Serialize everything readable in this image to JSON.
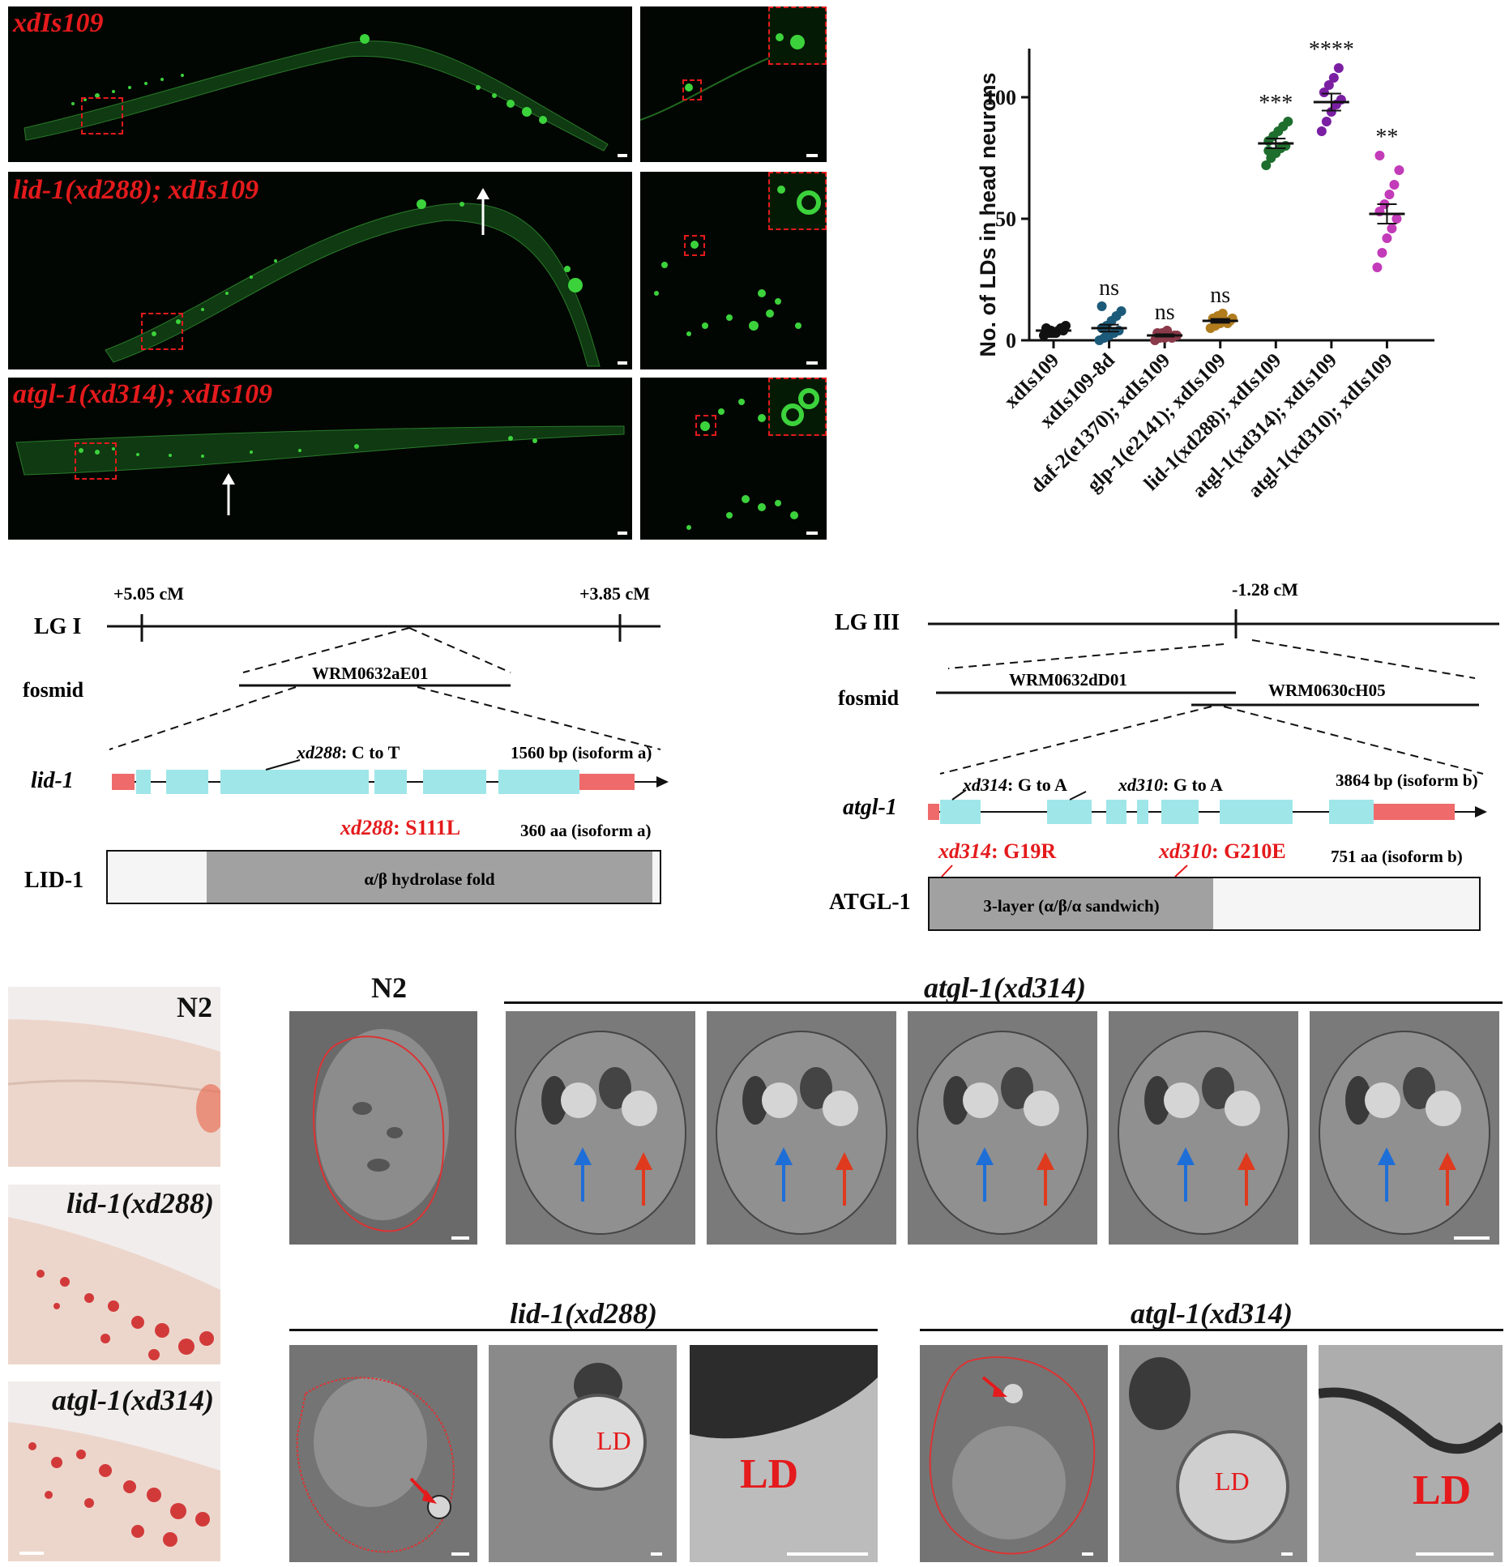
{
  "panelA": {
    "rows": [
      {
        "label": "xdIs109"
      },
      {
        "label": "lid-1(xd288); xdIs109"
      },
      {
        "label": "atgl-1(xd314); xdIs109"
      }
    ],
    "colors": {
      "gfp": "#3cd23c",
      "label_red": "#e41a1c",
      "background": "#020602"
    }
  },
  "chart_data": {
    "type": "scatter",
    "ylabel": "No. of LDs in head neurons",
    "ylim": [
      0,
      120
    ],
    "yticks": [
      0,
      50,
      100
    ],
    "categories": [
      "xdIs109",
      "xdIs109-8d",
      "daf-2(e1370); xdIs109",
      "glp-1(e2141); xdIs109",
      "lid-1(xd288); xdIs109",
      "atgl-1(xd314); xdIs109",
      "atgl-1(xd310); xdIs109"
    ],
    "significance": [
      "",
      "ns",
      "ns",
      "ns",
      "***",
      "****",
      "**"
    ],
    "series": [
      {
        "color": "#111111",
        "mean": 4,
        "sem": 0.6,
        "points": [
          2,
          3,
          3,
          4,
          4,
          5,
          4,
          3,
          5,
          6,
          4,
          3
        ]
      },
      {
        "color": "#1c5a7a",
        "mean": 5,
        "sem": 1.4,
        "points": [
          0,
          1,
          2,
          3,
          4,
          5,
          6,
          8,
          10,
          12,
          14,
          2
        ]
      },
      {
        "color": "#8a3a4a",
        "mean": 2,
        "sem": 0.5,
        "points": [
          0,
          1,
          1,
          2,
          2,
          3,
          3,
          4,
          1,
          2
        ]
      },
      {
        "color": "#b07c1c",
        "mean": 8,
        "sem": 0.8,
        "points": [
          5,
          6,
          7,
          8,
          8,
          9,
          10,
          11,
          7,
          9
        ]
      },
      {
        "color": "#1e6e2e",
        "mean": 81,
        "sem": 2,
        "points": [
          72,
          75,
          77,
          79,
          80,
          82,
          84,
          86,
          88,
          90,
          78
        ]
      },
      {
        "color": "#7a1fa2",
        "mean": 98,
        "sem": 3.5,
        "points": [
          86,
          90,
          94,
          97,
          99,
          102,
          105,
          108,
          112
        ]
      },
      {
        "color": "#c23bb8",
        "mean": 52,
        "sem": 4,
        "points": [
          30,
          36,
          42,
          46,
          50,
          53,
          56,
          60,
          64,
          70,
          76
        ]
      }
    ]
  },
  "panelC": {
    "lg": "LG I",
    "cm_left": "+5.05 cM",
    "cm_right": "+3.85 cM",
    "fosmid_label": "fosmid",
    "fosmid": "WRM0632aE01",
    "gene": "lid-1",
    "mutation_allele": "xd288",
    "mutation_text": ": C to T",
    "gene_length": "1560 bp (isoform a)",
    "protein_mut_allele": "xd288",
    "protein_mut_text": ": S111L",
    "protein_length": "360 aa (isoform a)",
    "protein": "LID-1",
    "domain": "α/β hydrolase fold"
  },
  "panelD": {
    "lg": "LG III",
    "cm": "-1.28 cM",
    "fosmid_label": "fosmid",
    "fosmid1": "WRM0632dD01",
    "fosmid2": "WRM0630cH05",
    "gene": "atgl-1",
    "mut1_allele": "xd314",
    "mut1_text": ": G to A",
    "mut2_allele": "xd310",
    "mut2_text": ": G to A",
    "gene_length": "3864 bp (isoform b)",
    "pmut1_allele": "xd314",
    "pmut1_text": ": G19R",
    "pmut2_allele": "xd310",
    "pmut2_text": ": G210E",
    "protein_length": "751 aa (isoform b)",
    "protein": "ATGL-1",
    "domain": "3-layer (α/β/α sandwich)"
  },
  "panelE": {
    "labels": [
      "N2",
      "lid-1(xd288)",
      "atgl-1(xd314)"
    ]
  },
  "panelF": {
    "n2_label": "N2",
    "atgl_label": "atgl-1(xd314)"
  },
  "panelG": {
    "lid_label": "lid-1(xd288)",
    "atgl_label": "atgl-1(xd314)",
    "ld": "LD"
  }
}
